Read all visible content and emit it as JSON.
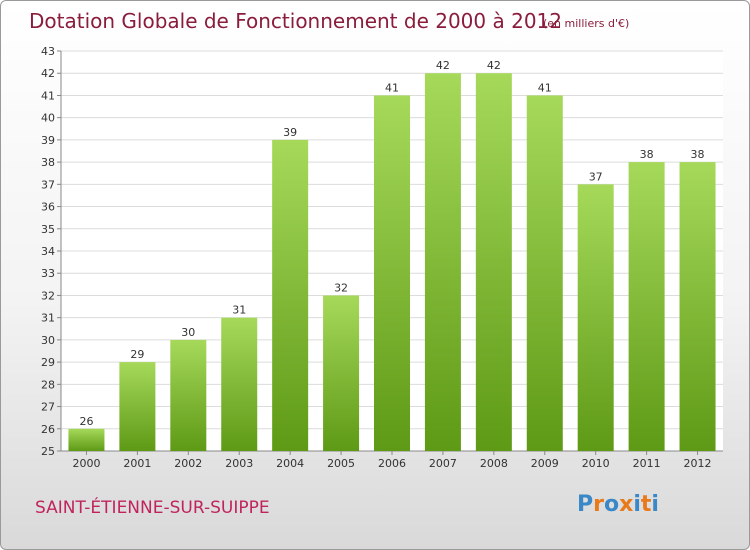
{
  "header": {
    "title": "Dotation Globale de Fonctionnement de 2000 à 2012",
    "unit": "(en milliers d'€)"
  },
  "footer": {
    "commune": "SAINT-ÉTIENNE-SUR-SUIPPE",
    "logo_text": "Proxiti"
  },
  "colors": {
    "title": "#8a1c3c",
    "commune": "#c0245c",
    "bar_light": "#a6d95a",
    "bar_dark": "#5e9a16",
    "logo": [
      "#3a88c8",
      "#e87a1c",
      "#3a88c8",
      "#e87a1c",
      "#3a88c8",
      "#e87a1c",
      "#3a88c8"
    ]
  },
  "chart_data": {
    "type": "bar",
    "title": "Dotation Globale de Fonctionnement de 2000 à 2012",
    "xlabel": "",
    "ylabel": "",
    "categories": [
      "2000",
      "2001",
      "2002",
      "2003",
      "2004",
      "2005",
      "2006",
      "2007",
      "2008",
      "2009",
      "2010",
      "2011",
      "2012"
    ],
    "values": [
      26,
      29,
      30,
      31,
      39,
      32,
      41,
      42,
      42,
      41,
      37,
      38,
      38
    ],
    "ylim": [
      25,
      43
    ],
    "yticks": [
      25,
      26,
      27,
      28,
      29,
      30,
      31,
      32,
      33,
      34,
      35,
      36,
      37,
      38,
      39,
      40,
      41,
      42,
      43
    ],
    "grid": true,
    "legend": "none"
  }
}
